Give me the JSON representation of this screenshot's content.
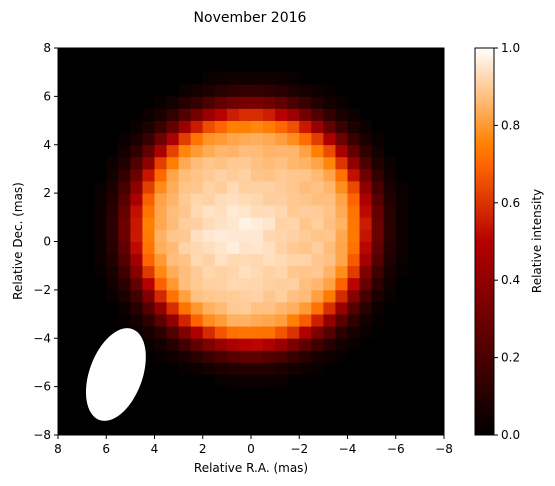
{
  "chart_data": {
    "type": "heatmap",
    "title": "November 2016",
    "xlabel": "Relative R.A. (mas)",
    "ylabel": "Relative Dec. (mas)",
    "colorbar_label": "Relative intensity",
    "xlim": [
      8,
      -8
    ],
    "ylim": [
      -8,
      8
    ],
    "x_ticks": [
      8,
      6,
      4,
      2,
      0,
      -2,
      -4,
      -6,
      -8
    ],
    "y_ticks": [
      -8,
      -6,
      -4,
      -2,
      0,
      2,
      4,
      6,
      8
    ],
    "x_tick_labels": [
      "8",
      "6",
      "4",
      "2",
      "0",
      "−2",
      "−4",
      "−6",
      "−8"
    ],
    "y_tick_labels": [
      "−8",
      "−6",
      "−4",
      "−2",
      "0",
      "2",
      "4",
      "6",
      "8"
    ],
    "colorbar_range": [
      0.0,
      1.0
    ],
    "colorbar_ticks": [
      0.0,
      0.2,
      0.4,
      0.6,
      0.8,
      1.0
    ],
    "colorbar_tick_labels": [
      "0.0",
      "0.2",
      "0.4",
      "0.6",
      "0.8",
      "1.0"
    ],
    "colormap": "gist_heat",
    "pixel_size_mas": 0.5,
    "source": {
      "center": [
        0.0,
        0.6
      ],
      "radius": 5.1,
      "limb_width": 0.9,
      "peak_intensity": 0.99,
      "bright_spot": {
        "center": [
          0.6,
          0.6
        ],
        "sigma": 1.2,
        "amplitude": 0.07
      },
      "brightness_gradient": 0.02
    },
    "beam": {
      "center": [
        5.6,
        -5.5
      ],
      "major_axis": 4.0,
      "minor_axis": 2.2,
      "position_angle_deg": 20,
      "color": "#ffffff"
    },
    "grid": false
  }
}
